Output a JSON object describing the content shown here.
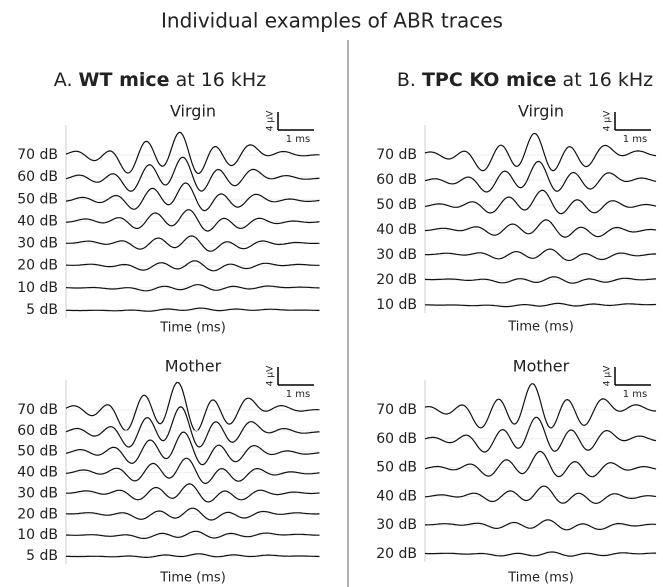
{
  "title": "Individual examples of ABR traces",
  "panels": [
    {
      "label": "A.",
      "group": "WT mice",
      "frequency": "at 16 kHz",
      "subplots": [
        {
          "title": "Virgin",
          "levels": [
            "70 dB",
            "60 dB",
            "50 dB",
            "40 dB",
            "30 dB",
            "20 dB",
            "10 dB",
            "5 dB"
          ],
          "xlabel": "Time (ms)",
          "scale_y": "4 μV",
          "scale_x": "1 ms"
        },
        {
          "title": "Mother",
          "levels": [
            "70 dB",
            "60 dB",
            "50 dB",
            "40 dB",
            "30 dB",
            "20 dB",
            "10 dB",
            "5 dB"
          ],
          "xlabel": "Time (ms)",
          "scale_y": "4 μV",
          "scale_x": "1 ms"
        }
      ]
    },
    {
      "label": "B.",
      "group": "TPC KO mice",
      "frequency": "at 16 kHz",
      "subplots": [
        {
          "title": "Virgin",
          "levels": [
            "70 dB",
            "60 dB",
            "50 dB",
            "40 dB",
            "30 dB",
            "20 dB",
            "10 dB"
          ],
          "xlabel": "Time (ms)",
          "scale_y": "4 μV",
          "scale_x": "1 ms"
        },
        {
          "title": "Mother",
          "levels": [
            "70 dB",
            "60 dB",
            "50 dB",
            "40 dB",
            "30 dB",
            "20 dB"
          ],
          "xlabel": "Time (ms)",
          "scale_y": "4 μV",
          "scale_x": "1 ms"
        }
      ]
    }
  ]
}
